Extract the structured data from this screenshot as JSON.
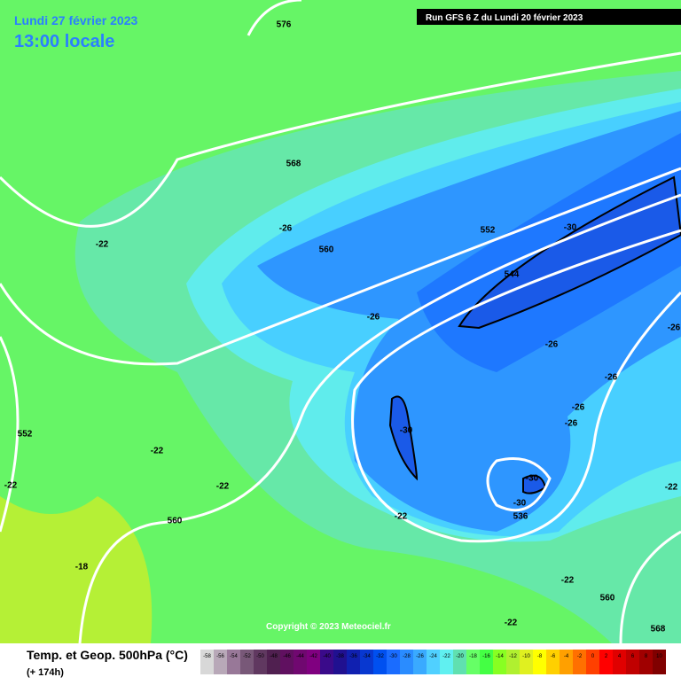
{
  "header": {
    "date": "Lundi 27 février 2023",
    "time": "13:00 locale",
    "run": "Run GFS 6 Z du Lundi 20 février 2023"
  },
  "copyright": "Copyright © 2023 Meteociel.fr",
  "footer": {
    "title": "Temp. et Geop. 500hPa (°C)",
    "lead": "(+ 174h)"
  },
  "map": {
    "labels": [
      "576",
      "568",
      "560",
      "552",
      "544",
      "536",
      "560",
      "560",
      "568",
      "552",
      "-22",
      "-26",
      "-26",
      "-30",
      "-26",
      "-26",
      "-26",
      "-26",
      "-26",
      "-30",
      "-30",
      "-30",
      "-22",
      "-22",
      "-22",
      "-22",
      "-22",
      "-22",
      "-22",
      "-18"
    ]
  },
  "scale": {
    "values": [
      -58,
      -56,
      -54,
      -52,
      -50,
      -48,
      -46,
      -44,
      -42,
      -40,
      -38,
      -36,
      -34,
      -32,
      -30,
      -28,
      -26,
      -24,
      -22,
      -20,
      -18,
      -16,
      -14,
      -12,
      -10,
      -8,
      -6,
      -4,
      -2,
      0,
      2,
      4,
      6,
      8,
      10
    ],
    "colors": [
      "#d8d8d8",
      "#b8a8b8",
      "#987898",
      "#785878",
      "#603860",
      "#502050",
      "#601060",
      "#700870",
      "#800080",
      "#3a0a8a",
      "#201090",
      "#1020b0",
      "#0838d0",
      "#0050f0",
      "#1a6cff",
      "#2a8cff",
      "#3aaaff",
      "#50d0ff",
      "#60f0f0",
      "#60e0b0",
      "#66ff66",
      "#44ff44",
      "#88ff22",
      "#b0f030",
      "#e0f020",
      "#ffff00",
      "#ffd000",
      "#ffa000",
      "#ff7000",
      "#ff4000",
      "#ff0000",
      "#e00000",
      "#c00000",
      "#a00000",
      "#800000"
    ]
  }
}
